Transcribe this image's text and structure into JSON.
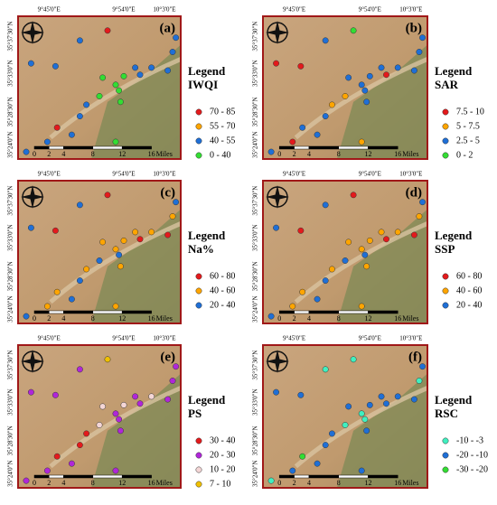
{
  "axis_labels": {
    "longitude": [
      "9°45'0\"E",
      "9°54'0\"E",
      "10°3'0\"E"
    ],
    "latitude": [
      "35°37'30\"N",
      "35°33'0\"N",
      "35°28'30\"N",
      "35°24'0\"N"
    ]
  },
  "scale_bar": {
    "ticks": [
      "0",
      "2",
      "4",
      "8",
      "12",
      "16"
    ],
    "unit": "Miles"
  },
  "panels": [
    {
      "label": "(a)",
      "legend_title": "Legend",
      "index_name": "IWQI",
      "classes": [
        {
          "label": "70 - 85",
          "color": "#e31a1c"
        },
        {
          "label": "55 - 70",
          "color": "#ffa500"
        },
        {
          "label": "40 - 55",
          "color": "#1f6fd6"
        },
        {
          "label": "0 - 40",
          "color": "#33dd33"
        }
      ]
    },
    {
      "label": "(b)",
      "legend_title": "Legend",
      "index_name": "SAR",
      "classes": [
        {
          "label": "7.5 - 10",
          "color": "#e31a1c"
        },
        {
          "label": "5 - 7.5",
          "color": "#ffa500"
        },
        {
          "label": "2.5 - 5",
          "color": "#1f6fd6"
        },
        {
          "label": "0 - 2",
          "color": "#33dd33"
        }
      ]
    },
    {
      "label": "(c)",
      "legend_title": "Legend",
      "index_name": "Na%",
      "classes": [
        {
          "label": "60 - 80",
          "color": "#e31a1c"
        },
        {
          "label": "40 - 60",
          "color": "#ffa500"
        },
        {
          "label": "20 - 40",
          "color": "#1f6fd6"
        }
      ]
    },
    {
      "label": "(d)",
      "legend_title": "Legend",
      "index_name": "SSP",
      "classes": [
        {
          "label": "60 - 80",
          "color": "#e31a1c"
        },
        {
          "label": "40 - 60",
          "color": "#ffa500"
        },
        {
          "label": "20 - 40",
          "color": "#1f6fd6"
        }
      ]
    },
    {
      "label": "(e)",
      "legend_title": "Legend",
      "index_name": "PS",
      "classes": [
        {
          "label": "30 - 40",
          "color": "#e31a1c"
        },
        {
          "label": "20 - 30",
          "color": "#b026d9"
        },
        {
          "label": "10 - 20",
          "color": "#f4d6d6"
        },
        {
          "label": "7 - 10",
          "color": "#f0c000"
        }
      ]
    },
    {
      "label": "(f)",
      "legend_title": "Legend",
      "index_name": "RSC",
      "classes": [
        {
          "label": "-10 - -3",
          "color": "#40f0c0"
        },
        {
          "label": "-20 - -10",
          "color": "#1f6fd6"
        },
        {
          "label": "-30 - -20",
          "color": "#33dd33"
        }
      ]
    }
  ]
}
